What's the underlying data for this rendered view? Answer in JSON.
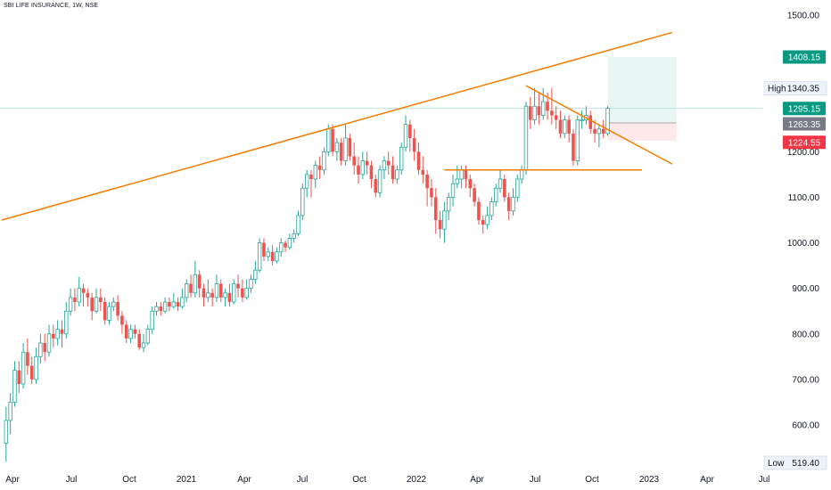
{
  "header": {
    "title": "SBI LIFE INSURANCE, 1W, NSE"
  },
  "colors": {
    "up": "#26a69a",
    "down": "#ef5350",
    "trendline": "#f57c00",
    "target_zone": "#e8f6f4",
    "stop_zone": "#fde8ea",
    "axis_text": "#131722",
    "price_line": "#b2dfdb"
  },
  "chart_data": {
    "type": "candlestick",
    "timeframe": "1W",
    "y_ticks": [
      "1500.00",
      "1400.00",
      "1300.00",
      "1200.00",
      "1100.00",
      "1000.00",
      "900.00",
      "800.00",
      "700.00",
      "600.00"
    ],
    "ylim": [
      480,
      1530
    ],
    "x_ticks": [
      "Apr",
      "Jul",
      "Oct",
      "2021",
      "Apr",
      "Jul",
      "Oct",
      "2022",
      "Apr",
      "Jul",
      "Oct",
      "2023",
      "Apr",
      "Jul"
    ],
    "xlim": [
      "2020-03-16",
      "2023-08-07"
    ],
    "high": {
      "label": "High",
      "value": "1340.35"
    },
    "low": {
      "label": "Low",
      "value": "519.40"
    },
    "price_labels": [
      {
        "value": "1408.15",
        "role": "target"
      },
      {
        "value": "1295.15",
        "role": "last"
      },
      {
        "value": "1263.35",
        "role": "entry"
      },
      {
        "value": "1224.55",
        "role": "stop"
      }
    ],
    "position": {
      "start": "2022-11-28",
      "end": "2023-03-20",
      "entry": 1263.35,
      "target": 1408.15,
      "stop": 1224.55
    },
    "trendlines": [
      {
        "from": [
          "2020-03-16",
          1050
        ],
        "to": [
          "2023-03-13",
          1462
        ]
      },
      {
        "from": [
          "2022-07-18",
          1345
        ],
        "to": [
          "2023-03-13",
          1173
        ]
      },
      {
        "from": [
          "2022-03-07",
          1160
        ],
        "to": [
          "2023-01-23",
          1160
        ]
      }
    ],
    "candles": [
      [
        "2020-03-23",
        560,
        610,
        519.4,
        640
      ],
      [
        "2020-03-30",
        610,
        650,
        580,
        670
      ],
      [
        "2020-04-06",
        650,
        720,
        640,
        740
      ],
      [
        "2020-04-13",
        720,
        690,
        670,
        740
      ],
      [
        "2020-04-20",
        690,
        760,
        680,
        780
      ],
      [
        "2020-04-27",
        760,
        730,
        710,
        790
      ],
      [
        "2020-05-04",
        730,
        700,
        690,
        750
      ],
      [
        "2020-05-11",
        700,
        750,
        690,
        770
      ],
      [
        "2020-05-18",
        750,
        780,
        735,
        800
      ],
      [
        "2020-05-25",
        780,
        760,
        740,
        800
      ],
      [
        "2020-06-01",
        760,
        800,
        750,
        820
      ],
      [
        "2020-06-08",
        800,
        790,
        770,
        820
      ],
      [
        "2020-06-15",
        790,
        810,
        775,
        830
      ],
      [
        "2020-06-22",
        810,
        800,
        770,
        830
      ],
      [
        "2020-06-29",
        800,
        850,
        790,
        870
      ],
      [
        "2020-07-06",
        850,
        880,
        840,
        900
      ],
      [
        "2020-07-13",
        880,
        870,
        850,
        900
      ],
      [
        "2020-07-20",
        870,
        900,
        860,
        925
      ],
      [
        "2020-07-27",
        900,
        890,
        860,
        910
      ],
      [
        "2020-08-03",
        890,
        880,
        860,
        900
      ],
      [
        "2020-08-10",
        880,
        850,
        830,
        890
      ],
      [
        "2020-08-17",
        850,
        880,
        845,
        900
      ],
      [
        "2020-08-24",
        880,
        870,
        850,
        900
      ],
      [
        "2020-08-31",
        870,
        830,
        820,
        880
      ],
      [
        "2020-09-07",
        830,
        860,
        820,
        870
      ],
      [
        "2020-09-14",
        860,
        870,
        850,
        880
      ],
      [
        "2020-09-21",
        870,
        840,
        830,
        885
      ],
      [
        "2020-09-28",
        840,
        820,
        800,
        850
      ],
      [
        "2020-10-05",
        820,
        790,
        780,
        830
      ],
      [
        "2020-10-12",
        790,
        810,
        780,
        820
      ],
      [
        "2020-10-19",
        810,
        800,
        790,
        820
      ],
      [
        "2020-10-26",
        800,
        770,
        765,
        810
      ],
      [
        "2020-11-02",
        770,
        780,
        760,
        800
      ],
      [
        "2020-11-09",
        780,
        810,
        775,
        820
      ],
      [
        "2020-11-16",
        810,
        850,
        800,
        860
      ],
      [
        "2020-11-23",
        850,
        860,
        840,
        870
      ],
      [
        "2020-11-30",
        860,
        850,
        840,
        870
      ],
      [
        "2020-12-07",
        850,
        870,
        845,
        880
      ],
      [
        "2020-12-14",
        870,
        860,
        850,
        880
      ],
      [
        "2020-12-21",
        860,
        870,
        855,
        890
      ],
      [
        "2020-12-28",
        870,
        860,
        850,
        880
      ],
      [
        "2021-01-04",
        860,
        880,
        855,
        900
      ],
      [
        "2021-01-11",
        880,
        910,
        870,
        920
      ],
      [
        "2021-01-18",
        910,
        890,
        880,
        930
      ],
      [
        "2021-01-25",
        890,
        930,
        880,
        960
      ],
      [
        "2021-02-01",
        930,
        900,
        880,
        940
      ],
      [
        "2021-02-08",
        900,
        880,
        860,
        910
      ],
      [
        "2021-02-15",
        880,
        890,
        870,
        920
      ],
      [
        "2021-02-22",
        890,
        880,
        860,
        900
      ],
      [
        "2021-03-01",
        880,
        910,
        870,
        930
      ],
      [
        "2021-03-08",
        910,
        880,
        870,
        920
      ],
      [
        "2021-03-15",
        880,
        890,
        860,
        900
      ],
      [
        "2021-03-22",
        890,
        870,
        860,
        910
      ],
      [
        "2021-03-29",
        870,
        910,
        865,
        920
      ],
      [
        "2021-04-05",
        910,
        900,
        880,
        930
      ],
      [
        "2021-04-12",
        900,
        880,
        870,
        920
      ],
      [
        "2021-04-19",
        880,
        900,
        875,
        920
      ],
      [
        "2021-04-26",
        900,
        920,
        890,
        930
      ],
      [
        "2021-05-03",
        920,
        940,
        910,
        960
      ],
      [
        "2021-05-10",
        940,
        1000,
        935,
        1010
      ],
      [
        "2021-05-17",
        1000,
        970,
        960,
        1010
      ],
      [
        "2021-05-24",
        970,
        980,
        960,
        990
      ],
      [
        "2021-05-31",
        980,
        960,
        950,
        995
      ],
      [
        "2021-06-07",
        960,
        980,
        955,
        990
      ],
      [
        "2021-06-14",
        980,
        1000,
        970,
        1010
      ],
      [
        "2021-06-21",
        1000,
        990,
        980,
        1005
      ],
      [
        "2021-06-28",
        990,
        1010,
        985,
        1020
      ],
      [
        "2021-07-05",
        1010,
        1020,
        1000,
        1030
      ],
      [
        "2021-07-12",
        1020,
        1060,
        1015,
        1070
      ],
      [
        "2021-07-19",
        1060,
        1120,
        1050,
        1130
      ],
      [
        "2021-07-26",
        1120,
        1150,
        1100,
        1160
      ],
      [
        "2021-08-02",
        1150,
        1140,
        1100,
        1160
      ],
      [
        "2021-08-09",
        1140,
        1170,
        1120,
        1180
      ],
      [
        "2021-08-16",
        1170,
        1160,
        1140,
        1190
      ],
      [
        "2021-08-23",
        1160,
        1200,
        1150,
        1210
      ],
      [
        "2021-08-30",
        1200,
        1250,
        1190,
        1260
      ],
      [
        "2021-09-06",
        1250,
        1200,
        1190,
        1260
      ],
      [
        "2021-09-13",
        1200,
        1220,
        1180,
        1230
      ],
      [
        "2021-09-20",
        1220,
        1180,
        1170,
        1230
      ],
      [
        "2021-09-27",
        1180,
        1230,
        1170,
        1260
      ],
      [
        "2021-10-04",
        1230,
        1190,
        1180,
        1240
      ],
      [
        "2021-10-11",
        1190,
        1170,
        1150,
        1220
      ],
      [
        "2021-10-18",
        1170,
        1150,
        1130,
        1190
      ],
      [
        "2021-10-25",
        1150,
        1180,
        1140,
        1200
      ],
      [
        "2021-11-01",
        1180,
        1170,
        1150,
        1200
      ],
      [
        "2021-11-08",
        1170,
        1140,
        1120,
        1180
      ],
      [
        "2021-11-15",
        1140,
        1110,
        1100,
        1150
      ],
      [
        "2021-11-22",
        1110,
        1160,
        1100,
        1170
      ],
      [
        "2021-11-29",
        1160,
        1180,
        1140,
        1190
      ],
      [
        "2021-12-06",
        1180,
        1170,
        1150,
        1200
      ],
      [
        "2021-12-13",
        1170,
        1140,
        1130,
        1190
      ],
      [
        "2021-12-20",
        1140,
        1160,
        1130,
        1170
      ],
      [
        "2021-12-27",
        1160,
        1210,
        1150,
        1220
      ],
      [
        "2022-01-03",
        1210,
        1260,
        1200,
        1280
      ],
      [
        "2022-01-10",
        1260,
        1230,
        1200,
        1270
      ],
      [
        "2022-01-17",
        1230,
        1200,
        1180,
        1250
      ],
      [
        "2022-01-24",
        1200,
        1160,
        1150,
        1220
      ],
      [
        "2022-01-31",
        1160,
        1150,
        1130,
        1190
      ],
      [
        "2022-02-07",
        1150,
        1120,
        1080,
        1160
      ],
      [
        "2022-02-14",
        1120,
        1100,
        1080,
        1140
      ],
      [
        "2022-02-21",
        1100,
        1050,
        1020,
        1120
      ],
      [
        "2022-02-28",
        1050,
        1030,
        1010,
        1070
      ],
      [
        "2022-03-07",
        1030,
        1070,
        1000,
        1090
      ],
      [
        "2022-03-14",
        1070,
        1100,
        1050,
        1110
      ],
      [
        "2022-03-21",
        1100,
        1130,
        1080,
        1150
      ],
      [
        "2022-03-28",
        1130,
        1140,
        1120,
        1170
      ],
      [
        "2022-04-04",
        1140,
        1160,
        1120,
        1170
      ],
      [
        "2022-04-11",
        1160,
        1140,
        1120,
        1170
      ],
      [
        "2022-04-18",
        1140,
        1120,
        1100,
        1150
      ],
      [
        "2022-04-25",
        1120,
        1090,
        1080,
        1130
      ],
      [
        "2022-05-02",
        1090,
        1050,
        1040,
        1100
      ],
      [
        "2022-05-09",
        1050,
        1040,
        1020,
        1060
      ],
      [
        "2022-05-16",
        1040,
        1060,
        1030,
        1080
      ],
      [
        "2022-05-23",
        1060,
        1090,
        1050,
        1100
      ],
      [
        "2022-05-30",
        1090,
        1120,
        1080,
        1130
      ],
      [
        "2022-06-06",
        1120,
        1140,
        1110,
        1160
      ],
      [
        "2022-06-13",
        1140,
        1100,
        1090,
        1150
      ],
      [
        "2022-06-20",
        1100,
        1070,
        1050,
        1110
      ],
      [
        "2022-06-27",
        1070,
        1100,
        1060,
        1120
      ],
      [
        "2022-07-04",
        1100,
        1140,
        1090,
        1150
      ],
      [
        "2022-07-11",
        1140,
        1160,
        1130,
        1170
      ],
      [
        "2022-07-18",
        1160,
        1300,
        1150,
        1310
      ],
      [
        "2022-07-25",
        1300,
        1270,
        1250,
        1320
      ],
      [
        "2022-08-01",
        1270,
        1300,
        1260,
        1340
      ],
      [
        "2022-08-08",
        1300,
        1280,
        1260,
        1330
      ],
      [
        "2022-08-15",
        1280,
        1310,
        1270,
        1340
      ],
      [
        "2022-08-22",
        1310,
        1290,
        1270,
        1330
      ],
      [
        "2022-08-29",
        1290,
        1280,
        1260,
        1340
      ],
      [
        "2022-09-05",
        1280,
        1270,
        1250,
        1300
      ],
      [
        "2022-09-12",
        1270,
        1240,
        1230,
        1290
      ],
      [
        "2022-09-19",
        1240,
        1270,
        1230,
        1280
      ],
      [
        "2022-09-26",
        1270,
        1240,
        1220,
        1280
      ],
      [
        "2022-10-03",
        1240,
        1180,
        1170,
        1250
      ],
      [
        "2022-10-10",
        1180,
        1270,
        1170,
        1280
      ],
      [
        "2022-10-17",
        1270,
        1270,
        1250,
        1290
      ],
      [
        "2022-10-24",
        1270,
        1280,
        1260,
        1300
      ],
      [
        "2022-10-31",
        1280,
        1250,
        1240,
        1290
      ],
      [
        "2022-11-07",
        1250,
        1240,
        1220,
        1270
      ],
      [
        "2022-11-14",
        1240,
        1250,
        1210,
        1260
      ],
      [
        "2022-11-21",
        1250,
        1240,
        1230,
        1270
      ],
      [
        "2022-11-28",
        1240,
        1295.15,
        1235,
        1300
      ]
    ]
  }
}
